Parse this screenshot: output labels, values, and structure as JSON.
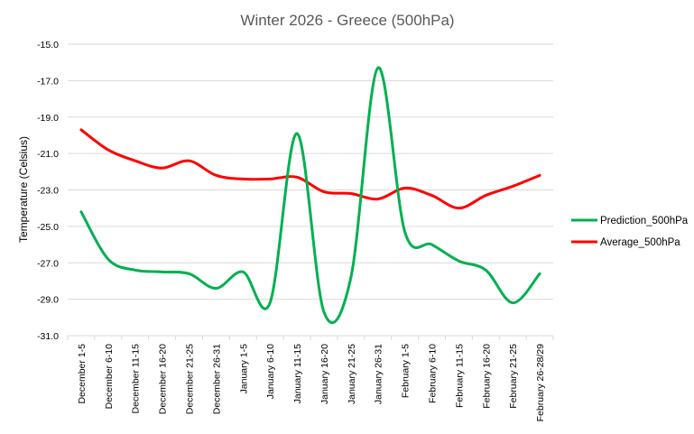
{
  "chart_data": {
    "type": "line",
    "title": "Winter 2026 - Greece (500hPa)",
    "xlabel": "",
    "ylabel": "Temperature (Celsius)",
    "ylim": [
      -31.0,
      -15.0
    ],
    "yticks": [
      "-15.0",
      "-17.0",
      "-19.0",
      "-21.0",
      "-23.0",
      "-25.0",
      "-27.0",
      "-29.0",
      "-31.0"
    ],
    "grid": true,
    "legend_position": "right",
    "categories": [
      "December 1-5",
      "December 6-10",
      "December 11-15",
      "December 16-20",
      "December 21-25",
      "December 26-31",
      "January 1-5",
      "January 6-10",
      "January 11-15",
      "January 16-20",
      "January 21-25",
      "January 26-31",
      "February 1-5",
      "February 6-10",
      "February 11-15",
      "February 16-20",
      "February 21-25",
      "February 26-28/29"
    ],
    "series": [
      {
        "name": "Prediction_500hPa",
        "color": "#00B050",
        "values": [
          -24.2,
          -26.8,
          -27.4,
          -27.5,
          -27.6,
          -28.4,
          -27.5,
          -29.2,
          -19.9,
          -29.7,
          -27.8,
          -16.3,
          -25.3,
          -26.0,
          -26.9,
          -27.4,
          -29.2,
          -27.6
        ]
      },
      {
        "name": "Average_500hPa",
        "color": "#FF0000",
        "values": [
          -19.7,
          -20.8,
          -21.4,
          -21.8,
          -21.4,
          -22.2,
          -22.4,
          -22.4,
          -22.3,
          -23.1,
          -23.2,
          -23.5,
          -22.9,
          -23.3,
          -24.0,
          -23.3,
          -22.8,
          -22.2
        ]
      }
    ]
  }
}
